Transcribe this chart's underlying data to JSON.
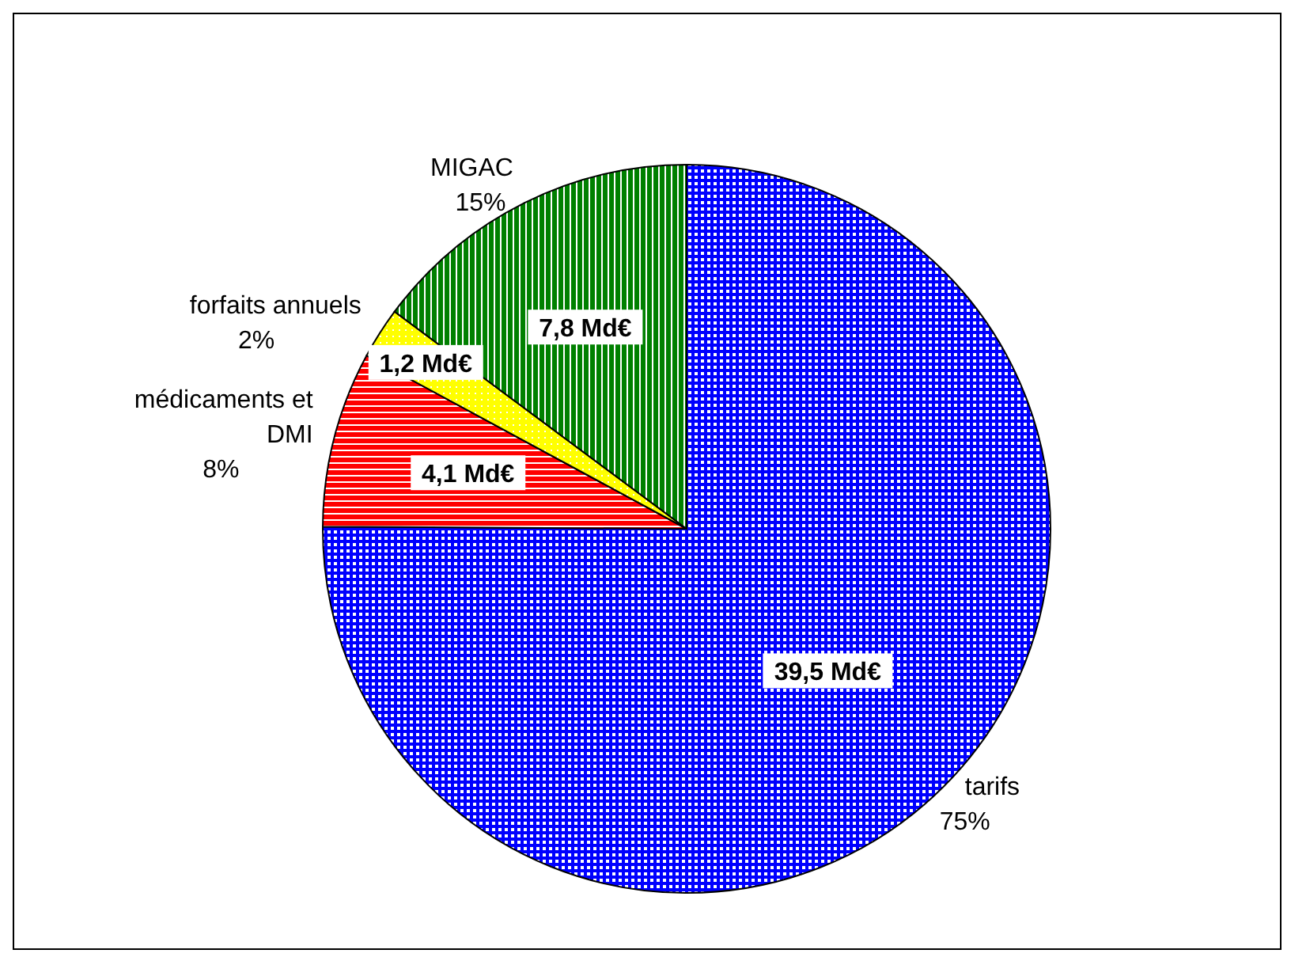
{
  "chart_data": {
    "type": "pie",
    "categories": [
      "tarifs",
      "médicaments et DMI",
      "forfaits annuels",
      "MIGAC"
    ],
    "values": [
      39.5,
      4.1,
      1.2,
      7.8
    ],
    "value_labels": [
      "39,5 Md€",
      "4,1 Md€",
      "1,2 Md€",
      "7,8 Md€"
    ],
    "colors": [
      "#0000ff",
      "#ff0000",
      "#ffff00",
      "#008000"
    ],
    "annotations": [
      "75%",
      "8%",
      "2%",
      "15%"
    ],
    "legend": false
  }
}
